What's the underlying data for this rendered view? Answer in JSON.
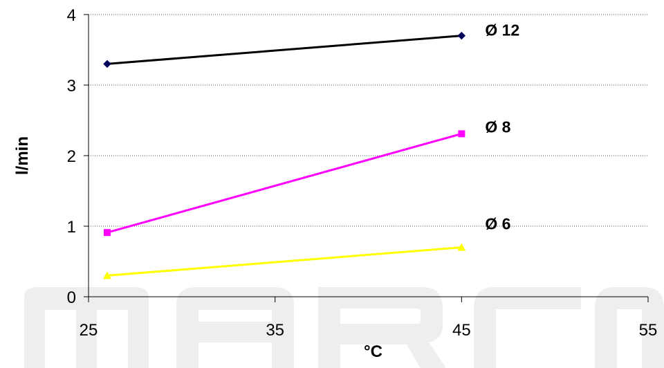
{
  "chart_data": {
    "type": "line",
    "title": "",
    "xlabel": "°C",
    "ylabel": "l/min",
    "xlim": [
      25,
      55
    ],
    "ylim": [
      0,
      4
    ],
    "x_ticks": [
      25,
      35,
      45,
      55
    ],
    "y_ticks": [
      0,
      1,
      2,
      3,
      4
    ],
    "grid": "horizontal dotted",
    "legend": "none",
    "series": [
      {
        "name": "Ø 12",
        "color": "#000000",
        "marker_color": "#00005a",
        "marker": "diamond",
        "points": [
          [
            26,
            3.3
          ],
          [
            45,
            3.7
          ]
        ]
      },
      {
        "name": "Ø 8",
        "color": "#ff00ff",
        "marker_color": "#ff00ff",
        "marker": "square",
        "points": [
          [
            26,
            0.91
          ],
          [
            45,
            2.31
          ]
        ]
      },
      {
        "name": "Ø 6",
        "color": "#ffff00",
        "marker_color": "#ffff00",
        "marker": "triangle",
        "points": [
          [
            26,
            0.3
          ],
          [
            45,
            0.7
          ]
        ]
      }
    ]
  },
  "watermark": {
    "text": "MARCO",
    "color": "#eeeeee"
  }
}
